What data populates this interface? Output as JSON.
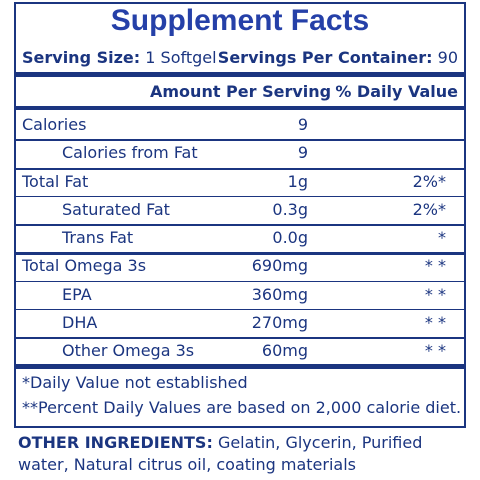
{
  "title": "Supplement Facts",
  "serving": {
    "size_label": "Serving Size:",
    "size": "1 Softgel",
    "per_container_label": "Servings Per Container:",
    "per_container": "90"
  },
  "header": {
    "amount": "Amount Per Serving",
    "dv": "% Daily Value"
  },
  "rows": [
    {
      "name": "Calories",
      "amount": "9",
      "indent": false
    },
    {
      "name": "Calories from Fat",
      "amount": "9",
      "indent": true
    },
    {
      "name": "Total Fat",
      "amount": "1g",
      "dv": "2%*",
      "indent": false
    },
    {
      "name": "Saturated Fat",
      "amount": "0.3g",
      "dv": "2%*",
      "indent": true
    },
    {
      "name": "Trans Fat",
      "amount": "0.0g",
      "dv": "*",
      "indent": true
    },
    {
      "name": "Total Omega 3s",
      "amount": "690mg",
      "dv": "* *",
      "indent": false
    },
    {
      "name": "EPA",
      "amount": "360mg",
      "dv": "* *",
      "indent": true
    },
    {
      "name": "DHA",
      "amount": "270mg",
      "dv": "* *",
      "indent": true
    },
    {
      "name": "Other Omega 3s",
      "amount": "60mg",
      "dv": "* *",
      "indent": true
    }
  ],
  "footnotes": [
    "*Daily Value not established",
    "**Percent Daily Values are based on 2,000 calorie diet."
  ],
  "ingredients": {
    "label": "OTHER INGREDIENTS:",
    "text": "Gelatin, Glycerin, Purified water, Natural citrus oil, coating materials"
  }
}
